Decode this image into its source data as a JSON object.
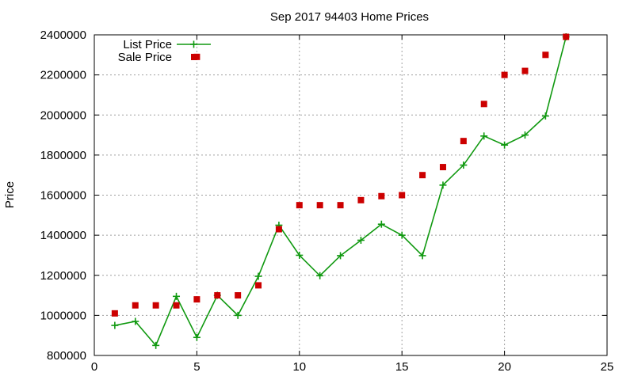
{
  "chart_data": {
    "type": "scatter",
    "title": "Sep 2017 94403 Home Prices",
    "xlabel": "",
    "ylabel": "Price",
    "xlim": [
      0,
      25
    ],
    "ylim": [
      800000,
      2400000
    ],
    "xticks": [
      "0",
      "5",
      "10",
      "15",
      "20",
      "25"
    ],
    "xtick_values": [
      0,
      5,
      10,
      15,
      20,
      25
    ],
    "yticks": [
      "800000",
      "1000000",
      "1200000",
      "1400000",
      "1600000",
      "1800000",
      "2000000",
      "2200000",
      "2400000"
    ],
    "ytick_values": [
      800000,
      1000000,
      1200000,
      1400000,
      1600000,
      1800000,
      2000000,
      2200000,
      2400000
    ],
    "grid": true,
    "legend_position": "top-left",
    "x": [
      1,
      2,
      3,
      4,
      5,
      6,
      7,
      8,
      9,
      10,
      11,
      12,
      13,
      14,
      15,
      16,
      17,
      18,
      19,
      20,
      21,
      22,
      23
    ],
    "series": [
      {
        "name": "List Price",
        "style": "line+cross",
        "color": "#109910",
        "values": [
          950000,
          970000,
          850000,
          1095000,
          890000,
          1100000,
          1000000,
          1195000,
          1450000,
          1300000,
          1198000,
          1298000,
          1375000,
          1455000,
          1400000,
          1298000,
          1650000,
          1750000,
          1895000,
          1850000,
          1900000,
          1995000,
          2390000
        ]
      },
      {
        "name": "Sale Price",
        "style": "square",
        "color": "#cc0000",
        "values": [
          1010000,
          1050000,
          1050000,
          1050000,
          1080000,
          1100000,
          1100000,
          1150000,
          1430000,
          1550000,
          1550000,
          1550000,
          1575000,
          1595000,
          1600000,
          1700000,
          1740000,
          1870000,
          2055000,
          2200000,
          2220000,
          2300000,
          2390000
        ]
      },
      {
        "name": "",
        "style": "square",
        "color": "#cc0000",
        "x": [
          5
        ],
        "values": [
          2290000
        ]
      }
    ]
  }
}
